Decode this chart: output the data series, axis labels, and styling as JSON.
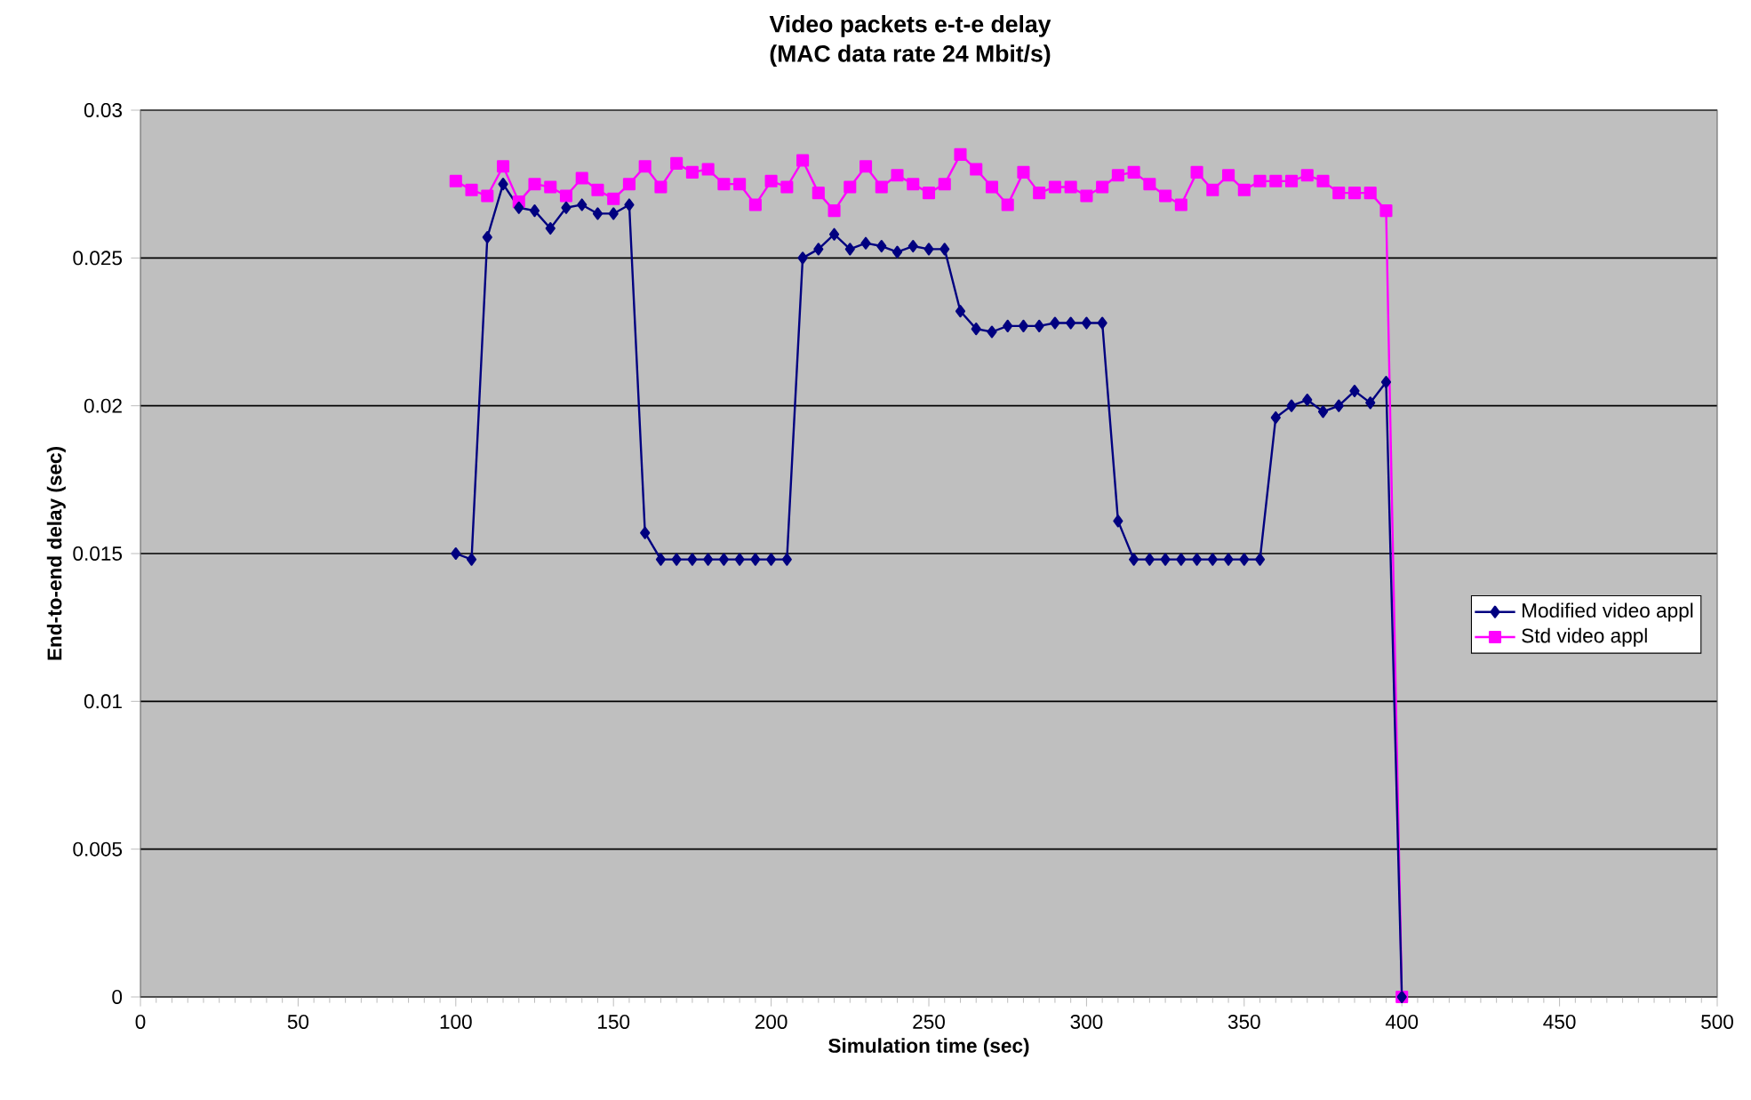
{
  "chart_data": {
    "type": "line",
    "title": "Video packets e-t-e delay",
    "subtitle": "(MAC data rate 24 Mbit/s)",
    "xlabel": "Simulation time (sec)",
    "ylabel": "End-to-end delay (sec)",
    "x": [
      100,
      105,
      110,
      115,
      120,
      125,
      130,
      135,
      140,
      145,
      150,
      155,
      160,
      165,
      170,
      175,
      180,
      185,
      190,
      195,
      200,
      205,
      210,
      215,
      220,
      225,
      230,
      235,
      240,
      245,
      250,
      255,
      260,
      265,
      270,
      275,
      280,
      285,
      290,
      295,
      300,
      305,
      310,
      315,
      320,
      325,
      330,
      335,
      340,
      345,
      350,
      355,
      360,
      365,
      370,
      375,
      380,
      385,
      390,
      395,
      400
    ],
    "series": [
      {
        "name": "Modified video appl",
        "color": "#000080",
        "marker": "diamond",
        "values": [
          0.015,
          0.0148,
          0.0257,
          0.0275,
          0.0267,
          0.0266,
          0.026,
          0.0267,
          0.0268,
          0.0265,
          0.0265,
          0.0268,
          0.0157,
          0.0148,
          0.0148,
          0.0148,
          0.0148,
          0.0148,
          0.0148,
          0.0148,
          0.0148,
          0.0148,
          0.025,
          0.0253,
          0.0258,
          0.0253,
          0.0255,
          0.0254,
          0.0252,
          0.0254,
          0.0253,
          0.0253,
          0.0232,
          0.0226,
          0.0225,
          0.0227,
          0.0227,
          0.0227,
          0.0228,
          0.0228,
          0.0228,
          0.0228,
          0.0161,
          0.0148,
          0.0148,
          0.0148,
          0.0148,
          0.0148,
          0.0148,
          0.0148,
          0.0148,
          0.0148,
          0.0196,
          0.02,
          0.0202,
          0.0198,
          0.02,
          0.0205,
          0.0201,
          0.0208,
          0
        ]
      },
      {
        "name": "Std video appl",
        "color": "#ff00ff",
        "marker": "square",
        "values": [
          0.0276,
          0.0273,
          0.0271,
          0.0281,
          0.0269,
          0.0275,
          0.0274,
          0.0271,
          0.0277,
          0.0273,
          0.027,
          0.0275,
          0.0281,
          0.0274,
          0.0282,
          0.0279,
          0.028,
          0.0275,
          0.0275,
          0.0268,
          0.0276,
          0.0274,
          0.0283,
          0.0272,
          0.0266,
          0.0274,
          0.0281,
          0.0274,
          0.0278,
          0.0275,
          0.0272,
          0.0275,
          0.0285,
          0.028,
          0.0274,
          0.0268,
          0.0279,
          0.0272,
          0.0274,
          0.0274,
          0.0271,
          0.0274,
          0.0278,
          0.0279,
          0.0275,
          0.0271,
          0.0268,
          0.0279,
          0.0273,
          0.0278,
          0.0273,
          0.0276,
          0.0276,
          0.0276,
          0.0278,
          0.0276,
          0.0272,
          0.0272,
          0.0272,
          0.0266,
          0
        ]
      }
    ],
    "xlim": [
      0,
      500
    ],
    "xticks": [
      0,
      50,
      100,
      150,
      200,
      250,
      300,
      350,
      400,
      450,
      500
    ],
    "ylim": [
      0,
      0.03
    ],
    "yticks": [
      0,
      0.005,
      0.01,
      0.015,
      0.02,
      0.025,
      0.03
    ],
    "grid": "y",
    "legend": "right"
  }
}
